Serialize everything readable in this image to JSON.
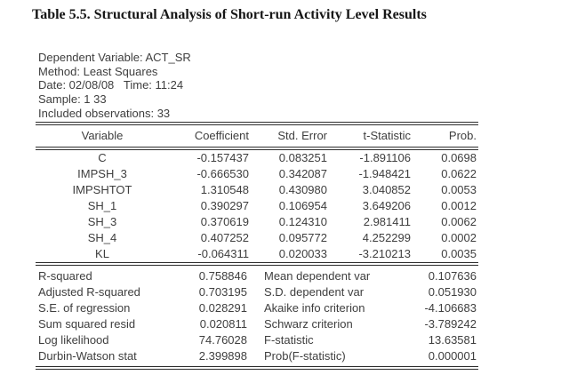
{
  "title": "Table 5.5. Structural Analysis of Short-run Activity Level Results",
  "header_info": {
    "dependent_variable": "Dependent Variable: ACT_SR",
    "method": "Method: Least Squares",
    "date_time": "Date: 02/08/08   Time: 11:24",
    "sample": "Sample: 1 33",
    "included_observations": "Included observations: 33"
  },
  "regression_table": {
    "columns": [
      "Variable",
      "Coefficient",
      "Std. Error",
      "t-Statistic",
      "Prob."
    ],
    "rows": [
      {
        "variable": "C",
        "coefficient": "-0.157437",
        "std_error": "0.083251",
        "t_statistic": "-1.891106",
        "prob": "0.0698"
      },
      {
        "variable": "IMPSH_3",
        "coefficient": "-0.666530",
        "std_error": "0.342087",
        "t_statistic": "-1.948421",
        "prob": "0.0622"
      },
      {
        "variable": "IMPSHTOT",
        "coefficient": "1.310548",
        "std_error": "0.430980",
        "t_statistic": "3.040852",
        "prob": "0.0053"
      },
      {
        "variable": "SH_1",
        "coefficient": "0.390297",
        "std_error": "0.106954",
        "t_statistic": "3.649206",
        "prob": "0.0012"
      },
      {
        "variable": "SH_3",
        "coefficient": "0.370619",
        "std_error": "0.124310",
        "t_statistic": "2.981411",
        "prob": "0.0062"
      },
      {
        "variable": "SH_4",
        "coefficient": "0.407252",
        "std_error": "0.095772",
        "t_statistic": "4.252299",
        "prob": "0.0002"
      },
      {
        "variable": "KL",
        "coefficient": "-0.064311",
        "std_error": "0.020033",
        "t_statistic": "-3.210213",
        "prob": "0.0035"
      }
    ]
  },
  "summary_stats": {
    "rows": [
      {
        "l_label": "R-squared",
        "l_value": "0.758846",
        "r_label": "Mean dependent var",
        "r_value": "0.107636"
      },
      {
        "l_label": "Adjusted R-squared",
        "l_value": "0.703195",
        "r_label": "S.D. dependent var",
        "r_value": "0.051930"
      },
      {
        "l_label": "S.E. of regression",
        "l_value": "0.028291",
        "r_label": "Akaike info criterion",
        "r_value": "-4.106683"
      },
      {
        "l_label": "Sum squared resid",
        "l_value": "0.020811",
        "r_label": "Schwarz criterion",
        "r_value": "-3.789242"
      },
      {
        "l_label": "Log likelihood",
        "l_value": "74.76028",
        "r_label": "F-statistic",
        "r_value": "13.63581"
      },
      {
        "l_label": "Durbin-Watson stat",
        "l_value": "2.399898",
        "r_label": "Prob(F-statistic)",
        "r_value": "0.000001"
      }
    ]
  },
  "colors": {
    "background": "#ffffff",
    "text": "#3e3e3e",
    "title_text": "#161616",
    "rule": "#2e2e2e"
  }
}
